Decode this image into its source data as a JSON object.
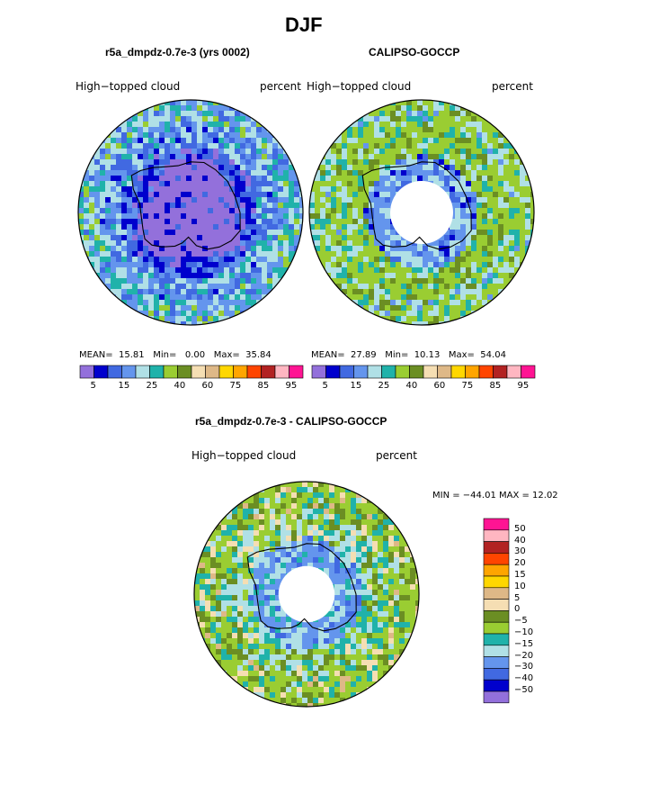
{
  "title": "DJF",
  "colors": {
    "abs_levels": [
      "#9370db",
      "#0000cd",
      "#4169e1",
      "#6495ed",
      "#b0e0e6",
      "#20b2aa",
      "#9acd32",
      "#6b8e23",
      "#f5deb3",
      "#deb887",
      "#ffd700",
      "#ffa500",
      "#ff4500",
      "#b22222",
      "#ffb6c1",
      "#ff1493"
    ],
    "diff_levels": [
      "#9370db",
      "#0000cd",
      "#4169e1",
      "#6495ed",
      "#b0e0e6",
      "#20b2aa",
      "#9acd32",
      "#6b8e23",
      "#f5deb3",
      "#deb887",
      "#ffd700",
      "#ffa500",
      "#ff4500",
      "#b22222",
      "#ffb6c1",
      "#ff1493"
    ]
  },
  "panels": [
    {
      "title": "r5a_dmpdz-0.7e-3 (yrs 0002)",
      "variable": "High−topped  cloud",
      "units": "percent",
      "stats": {
        "mean_label": "MEAN=",
        "mean": "15.81",
        "min_label": "Min=",
        "min": "0.00",
        "max_label": "Max=",
        "max": "35.84"
      },
      "colorbar_ticks": [
        "5",
        "15",
        "25",
        "40",
        "60",
        "75",
        "85",
        "95"
      ]
    },
    {
      "title": "CALIPSO-GOCCP",
      "variable": "High−topped  cloud",
      "units": "percent",
      "stats": {
        "mean_label": "MEAN=",
        "mean": "27.89",
        "min_label": "Min=",
        "min": "10.13",
        "max_label": "Max=",
        "max": "54.04"
      },
      "colorbar_ticks": [
        "5",
        "15",
        "25",
        "40",
        "60",
        "75",
        "85",
        "95"
      ]
    }
  ],
  "diff_panel": {
    "title": "r5a_dmpdz-0.7e-3 - CALIPSO-GOCCP",
    "variable": "High−topped  cloud",
    "units": "percent",
    "minmax": "MIN = −44.01 MAX =  12.02",
    "colorbar_labels": [
      "50",
      "40",
      "30",
      "20",
      "15",
      "10",
      "5",
      "0",
      "−5",
      "−10",
      "−15",
      "−20",
      "−30",
      "−40",
      "−50"
    ]
  },
  "chart_data": [
    {
      "type": "heatmap",
      "title": "r5a_dmpdz-0.7e-3 (yrs 0002)",
      "projection": "south polar stereographic",
      "variable": "High-topped cloud",
      "units": "percent",
      "levels": [
        5,
        10,
        15,
        20,
        25,
        30,
        40,
        50,
        60,
        70,
        75,
        80,
        85,
        90,
        95
      ],
      "mean": 15.81,
      "min": 0.0,
      "max": 35.84
    },
    {
      "type": "heatmap",
      "title": "CALIPSO-GOCCP",
      "projection": "south polar stereographic",
      "variable": "High-topped cloud",
      "units": "percent",
      "levels": [
        5,
        10,
        15,
        20,
        25,
        30,
        40,
        50,
        60,
        70,
        75,
        80,
        85,
        90,
        95
      ],
      "mean": 27.89,
      "min": 10.13,
      "max": 54.04
    },
    {
      "type": "heatmap",
      "title": "r5a_dmpdz-0.7e-3 - CALIPSO-GOCCP",
      "projection": "south polar stereographic",
      "variable": "High-topped cloud",
      "units": "percent",
      "levels": [
        -50,
        -40,
        -30,
        -20,
        -15,
        -10,
        -5,
        0,
        5,
        10,
        15,
        20,
        30,
        40,
        50
      ],
      "min": -44.01,
      "max": 12.02
    }
  ]
}
